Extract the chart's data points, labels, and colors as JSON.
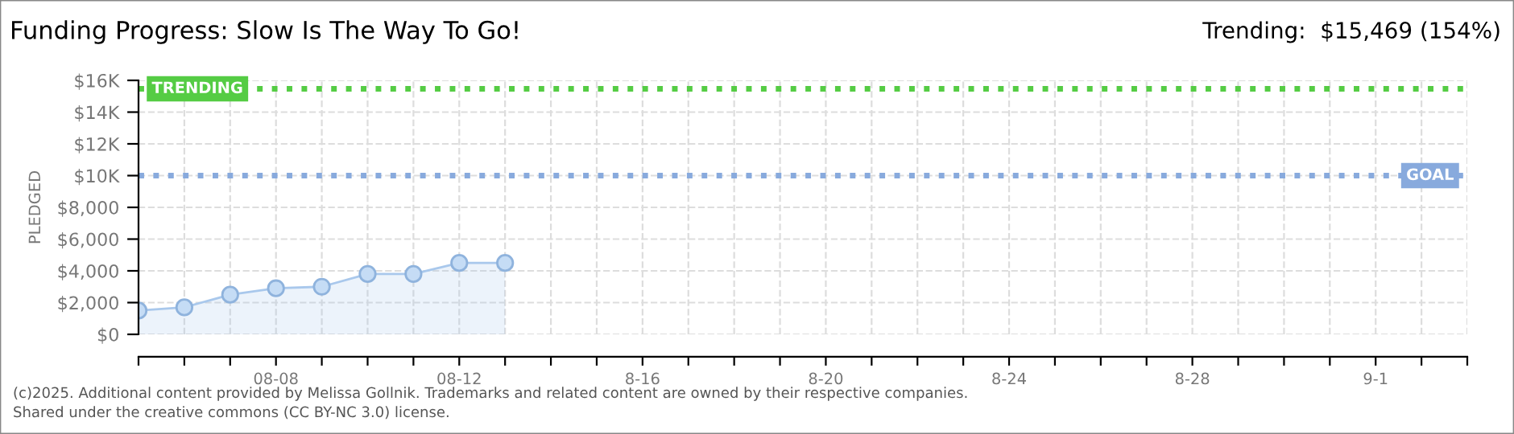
{
  "chart_data": {
    "type": "area",
    "title": "Funding Progress: Slow Is The Way To Go!",
    "ylabel": "PLEDGED",
    "annotations": [
      "Trending:  $15,469 (154%)",
      "(c)2025. Additional content provided by Melissa Gollnik. Trademarks and related content are owned by their respective companies.",
      "Shared under the creative commons (CC BY-NC 3.0) license."
    ],
    "x": [
      "2025-08-05",
      "2025-08-06",
      "2025-08-07",
      "2025-08-08",
      "2025-08-09",
      "2025-08-10",
      "2025-08-11",
      "2025-08-12",
      "2025-08-13"
    ],
    "series": [
      {
        "color": "#a9c8ec",
        "values": [
          1500,
          1700,
          2500,
          2900,
          3000,
          3800,
          3800,
          4500,
          4500
        ]
      }
    ],
    "marker": "circle",
    "grid": true,
    "xlim": [
      "2025-08-05",
      "2025-09-03"
    ],
    "xticks": [
      {
        "value": "2025-08-05",
        "label": null
      },
      {
        "value": "2025-08-06",
        "label": null
      },
      {
        "value": "2025-08-07",
        "label": null
      },
      {
        "value": "2025-08-08",
        "label": "08-08"
      },
      {
        "value": "2025-08-09",
        "label": null
      },
      {
        "value": "2025-08-10",
        "label": null
      },
      {
        "value": "2025-08-11",
        "label": null
      },
      {
        "value": "2025-08-12",
        "label": "08-12"
      },
      {
        "value": "2025-08-13",
        "label": null
      },
      {
        "value": "2025-08-14",
        "label": null
      },
      {
        "value": "2025-08-15",
        "label": null
      },
      {
        "value": "2025-08-16",
        "label": "8-16"
      },
      {
        "value": "2025-08-17",
        "label": null
      },
      {
        "value": "2025-08-18",
        "label": null
      },
      {
        "value": "2025-08-19",
        "label": null
      },
      {
        "value": "2025-08-20",
        "label": "8-20"
      },
      {
        "value": "2025-08-21",
        "label": null
      },
      {
        "value": "2025-08-22",
        "label": null
      },
      {
        "value": "2025-08-23",
        "label": null
      },
      {
        "value": "2025-08-24",
        "label": "8-24"
      },
      {
        "value": "2025-08-25",
        "label": null
      },
      {
        "value": "2025-08-26",
        "label": null
      },
      {
        "value": "2025-08-27",
        "label": null
      },
      {
        "value": "2025-08-28",
        "label": "8-28"
      },
      {
        "value": "2025-08-29",
        "label": null
      },
      {
        "value": "2025-08-30",
        "label": null
      },
      {
        "value": "2025-08-31",
        "label": null
      },
      {
        "value": "2025-09-01",
        "label": "9-1"
      },
      {
        "value": "2025-09-02",
        "label": null
      },
      {
        "value": "2025-09-03",
        "label": null
      }
    ],
    "ylim": [
      0,
      16000
    ],
    "yticks": [
      {
        "value": 0,
        "label": "$0"
      },
      {
        "value": 2000,
        "label": "$2,000"
      },
      {
        "value": 4000,
        "label": "$4,000"
      },
      {
        "value": 6000,
        "label": "$6,000"
      },
      {
        "value": 8000,
        "label": "$8,000"
      },
      {
        "value": 10000,
        "label": "$10K"
      },
      {
        "value": 12000,
        "label": "$12K"
      },
      {
        "value": 14000,
        "label": "$14K"
      },
      {
        "value": 16000,
        "label": "$16K"
      }
    ],
    "ref_lines": [
      {
        "axis": "y",
        "value": 15469,
        "label": "TRENDING",
        "color": "#55cc44",
        "line_style": "dotted"
      },
      {
        "axis": "y",
        "value": 10000,
        "label": "GOAL",
        "color": "#88aadd",
        "line_style": "dotted"
      }
    ]
  }
}
